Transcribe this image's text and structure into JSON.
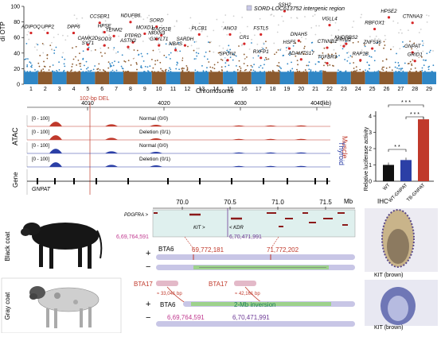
{
  "manhattan": {
    "ylabel": "di OTP",
    "yticks": [
      "0",
      "20",
      "40",
      "60",
      "80",
      "100"
    ],
    "xlabel": "Chromosome",
    "chromosomes": [
      "1",
      "2",
      "3",
      "4",
      "5",
      "6",
      "7",
      "8",
      "9",
      "10",
      "11",
      "12",
      "13",
      "14",
      "15",
      "16",
      "17",
      "18",
      "19",
      "20",
      "21",
      "22",
      "23",
      "24",
      "25",
      "26",
      "27",
      "28",
      "29"
    ],
    "legend": "SORD-LOC613752 intergenic region",
    "genes": [
      {
        "label": "SSH2",
        "chr": 19,
        "value": 100,
        "italic": true
      },
      {
        "label": "ADIPOQ",
        "chr": 1,
        "value": 72,
        "italic": true
      },
      {
        "label": "UPP2",
        "chr": 2,
        "value": 72,
        "italic": true
      },
      {
        "label": "CCSER1",
        "chr": 6,
        "value": 85,
        "italic": true
      },
      {
        "label": "NDUFB6",
        "chr": 8,
        "value": 86,
        "italic": true
      },
      {
        "label": "HPSE2",
        "chr": 26,
        "value": 92,
        "italic": true
      },
      {
        "label": "CTNNA3",
        "chr": 28,
        "value": 85,
        "italic": true
      },
      {
        "label": "VGLL4",
        "chr": 22,
        "value": 82,
        "italic": true
      },
      {
        "label": "RBFOX1",
        "chr": 25,
        "value": 77,
        "italic": true
      },
      {
        "label": "SORD",
        "chr": 10,
        "value": 80,
        "italic": true
      },
      {
        "label": "DPP6",
        "chr": 4,
        "value": 72,
        "italic": true
      },
      {
        "label": "HPSE",
        "chr": 6,
        "value": 73,
        "italic": true
      },
      {
        "label": "TENM2",
        "chr": 7,
        "value": 68,
        "italic": true
      },
      {
        "label": "MOXD1",
        "chr": 9,
        "value": 71,
        "italic": true
      },
      {
        "label": "RAD51B",
        "chr": 10,
        "value": 69,
        "italic": true
      },
      {
        "label": "PLCB1",
        "chr": 13,
        "value": 70,
        "italic": true
      },
      {
        "label": "ANO3",
        "chr": 15,
        "value": 70,
        "italic": true
      },
      {
        "label": "FSTL5",
        "chr": 17,
        "value": 70,
        "italic": true
      },
      {
        "label": "DNAH5",
        "chr": 20,
        "value": 62,
        "italic": true
      },
      {
        "label": "CAMK2D",
        "chr": 5,
        "value": 57,
        "italic": true
      },
      {
        "label": "PTPRD",
        "chr": 8,
        "value": 60,
        "italic": true
      },
      {
        "label": "NRXN3",
        "chr": 10,
        "value": 64,
        "italic": true
      },
      {
        "label": "CR1",
        "chr": 16,
        "value": 58,
        "italic": true
      },
      {
        "label": "HSF5",
        "chr": 19,
        "value": 52,
        "italic": true
      },
      {
        "label": "CTNNB1",
        "chr": 22,
        "value": 53,
        "italic": true
      },
      {
        "label": "PRIM2",
        "chr": 23,
        "value": 55,
        "italic": true
      },
      {
        "label": "KHDRBS2",
        "chr": 23,
        "value": 58,
        "italic": true
      },
      {
        "label": "GNPAT",
        "chr": 28,
        "value": 47,
        "italic": true
      },
      {
        "label": "SYT1",
        "chr": 5,
        "value": 51,
        "italic": true
      },
      {
        "label": "SOD3",
        "chr": 6,
        "value": 56,
        "italic": true
      },
      {
        "label": "ASTN2",
        "chr": 8,
        "value": 54,
        "italic": true
      },
      {
        "label": "GXYLT1",
        "chr": 10,
        "value": 56,
        "italic": true
      },
      {
        "label": "NBAS",
        "chr": 11,
        "value": 50,
        "italic": true
      },
      {
        "label": "SARDH",
        "chr": 12,
        "value": 56,
        "italic": true
      },
      {
        "label": "ZNF536",
        "chr": 25,
        "value": 52,
        "italic": true
      },
      {
        "label": "RXFP1",
        "chr": 17,
        "value": 40,
        "italic": true
      },
      {
        "label": "SPON1",
        "chr": 15,
        "value": 37,
        "italic": true
      },
      {
        "label": "ADAMTS17",
        "chr": 20,
        "value": 38,
        "italic": true
      },
      {
        "label": "RAP1B",
        "chr": 24,
        "value": 37,
        "italic": true
      },
      {
        "label": "TGFBR3",
        "chr": 22,
        "value": 33,
        "italic": true
      },
      {
        "label": "GRID1",
        "chr": 28,
        "value": 36,
        "italic": true
      }
    ]
  },
  "atac": {
    "coord_ticks": [
      "4010",
      "4020",
      "4030",
      "4040"
    ],
    "coord_unit": "(kb)",
    "del_label": "102-bp DEL",
    "row_label": "ATAC",
    "gene_row_label": "Gene",
    "gene_name": "GNPAT",
    "tracks": [
      {
        "range": "[0 - 100]",
        "label": "Normal (0/0)",
        "tissue": "Muscle",
        "color": "#c0392b"
      },
      {
        "range": "[0 - 100]",
        "label": "Deletion (0/1)",
        "tissue": "Muscle",
        "color": "#c0392b"
      },
      {
        "range": "[0 - 100]",
        "label": "Normal (0/0)",
        "tissue": "Thyroid",
        "color": "#2b3fa6"
      },
      {
        "range": "[0 - 100]",
        "label": "Deletion (0/1)",
        "tissue": "Thyroid",
        "color": "#2b3fa6"
      }
    ]
  },
  "luciferase": {
    "ylabel": "Relative luciferase activity",
    "yticks": [
      "0",
      "1",
      "2",
      "3",
      "4"
    ],
    "sig": [
      "* *",
      "* * *",
      "* * *"
    ],
    "chart_data": {
      "type": "bar",
      "categories": [
        "WT",
        "WT-GNPAT",
        "TB-GNPAT"
      ],
      "values": [
        1.0,
        1.3,
        3.8
      ],
      "ylim": [
        0,
        4
      ],
      "colors": [
        "#111111",
        "#2b3fa6",
        "#c0392b"
      ]
    }
  },
  "coat": {
    "black_label": "Black coat",
    "gray_label": "Gray coat",
    "ihc_title": "IHC",
    "kit_label": "KIT (brown)",
    "mb_ticks": [
      "70.0",
      "70.5",
      "71.0",
      "71.5"
    ],
    "mb_unit": "Mb",
    "pdgfra": "PDGFRA >",
    "kit_gene": "KIT >",
    "kdr_gene": "< KDR",
    "pos1": "6,69,764,591",
    "pos2": "6,70,471,991",
    "bta6": "BTA6",
    "bp1": "69,772,181",
    "bp2": "71,772,202",
    "bta17a": "BTA17",
    "bta17b": "BTA17",
    "d1": "≈ 33,041 bp",
    "d2": "≈ 42,161 bp",
    "inversion": "2-Mb inversion",
    "plus": "+",
    "minus": "−"
  }
}
